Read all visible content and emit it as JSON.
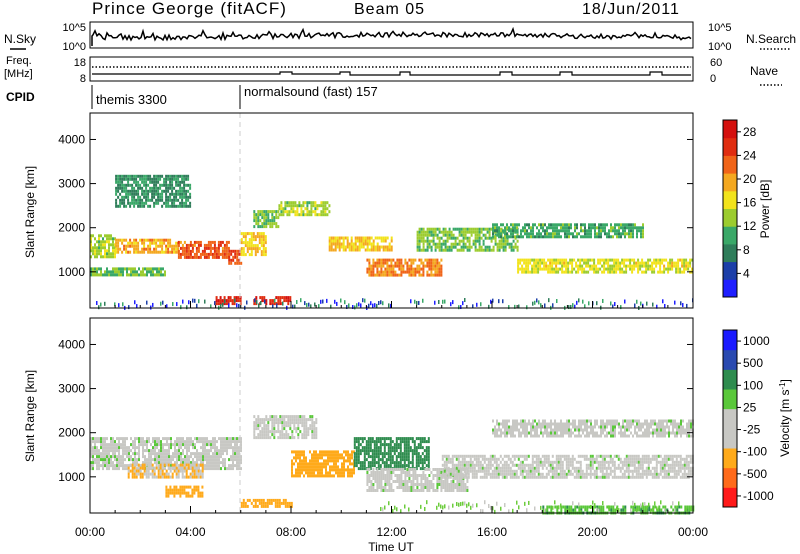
{
  "header": {
    "station": "Prince George (fitACF)",
    "beam": "Beam 05",
    "date": "18/Jun/2011"
  },
  "small_panels": {
    "nsky": {
      "label": "N.Sky",
      "ticks": [
        "10^5",
        "10^0"
      ]
    },
    "nsearch": {
      "label": "N.Search",
      "ticks": [
        "10^5",
        "10^0"
      ]
    },
    "freq": {
      "label_line1": "Freq.",
      "label_line2": "[MHz]",
      "ticks": [
        "18",
        "8"
      ]
    },
    "nave": {
      "label": "Nave",
      "ticks": [
        "60",
        "0"
      ]
    },
    "cpid": {
      "label": "CPID",
      "segments": [
        {
          "name": "themis 3300"
        },
        {
          "name": "normalsound (fast) 157"
        }
      ]
    }
  },
  "colors": {
    "power_scale": [
      "#1f1fff",
      "#1c3fa8",
      "#2f7d5a",
      "#3aa868",
      "#9ccc2f",
      "#f2e31c",
      "#f4a820",
      "#f06418",
      "#e02d10",
      "#d4100e"
    ],
    "velocity_scale": [
      "#ff1a1a",
      "#ff6a1a",
      "#ffaa1a",
      "#c8c8c4",
      "#c8c8c4",
      "#5ac83a",
      "#2e8c4e",
      "#2a4ab0",
      "#1a1aff"
    ]
  },
  "chart_data": [
    {
      "type": "heatmap",
      "name": "power",
      "xlabel": "",
      "ylabel": "Slant Range [km]",
      "xlim_hours": [
        0,
        24
      ],
      "ylim": [
        180,
        4600
      ],
      "yticks": [
        1000,
        2000,
        3000,
        4000
      ],
      "colorbar": {
        "label": "Power [dB]",
        "ticks": [
          4,
          8,
          12,
          16,
          20,
          24,
          28
        ],
        "range": [
          0,
          30
        ]
      },
      "bands": [
        {
          "h": [
            0.0,
            1.0
          ],
          "y": [
            1350,
            1850
          ],
          "v": 14
        },
        {
          "h": [
            1.0,
            3.5
          ],
          "y": [
            1450,
            1750
          ],
          "v": 20
        },
        {
          "h": [
            3.5,
            5.5
          ],
          "y": [
            1300,
            1700
          ],
          "v": 24
        },
        {
          "h": [
            5.5,
            6.0
          ],
          "y": [
            1200,
            1500
          ],
          "v": 26
        },
        {
          "h": [
            6.0,
            7.0
          ],
          "y": [
            1400,
            1900
          ],
          "v": 18
        },
        {
          "h": [
            6.5,
            7.5
          ],
          "y": [
            2000,
            2400
          ],
          "v": 12
        },
        {
          "h": [
            7.5,
            9.5
          ],
          "y": [
            2300,
            2600
          ],
          "v": 14
        },
        {
          "h": [
            9.5,
            12.0
          ],
          "y": [
            1500,
            1800
          ],
          "v": 18
        },
        {
          "h": [
            11.0,
            14.0
          ],
          "y": [
            900,
            1300
          ],
          "v": 22
        },
        {
          "h": [
            13.0,
            17.0
          ],
          "y": [
            1500,
            2000
          ],
          "v": 12
        },
        {
          "h": [
            17.0,
            24.0
          ],
          "y": [
            1000,
            1300
          ],
          "v": 16
        },
        {
          "h": [
            16.0,
            22.0
          ],
          "y": [
            1800,
            2100
          ],
          "v": 10
        },
        {
          "h": [
            0.0,
            3.0
          ],
          "y": [
            900,
            1100
          ],
          "v": 12
        },
        {
          "h": [
            1.0,
            4.0
          ],
          "y": [
            2500,
            3200
          ],
          "v": 8
        },
        {
          "h": [
            5.0,
            6.0
          ],
          "y": [
            300,
            450
          ],
          "v": 28
        },
        {
          "h": [
            6.5,
            8.0
          ],
          "y": [
            300,
            450
          ],
          "v": 28
        }
      ]
    },
    {
      "type": "heatmap",
      "name": "velocity",
      "xlabel": "Time UT",
      "ylabel": "Slant Range [km]",
      "xlim_hours": [
        0,
        24
      ],
      "xticks": [
        "00:00",
        "04:00",
        "08:00",
        "12:00",
        "16:00",
        "20:00",
        "00:00"
      ],
      "ylim": [
        180,
        4600
      ],
      "yticks": [
        1000,
        2000,
        3000,
        4000
      ],
      "colorbar": {
        "label": "Velocity [m s^-1]",
        "ticks": [
          "1000",
          "500",
          "100",
          "25",
          "-25",
          "-100",
          "-500",
          "-1000"
        ]
      },
      "bands": [
        {
          "h": [
            0.0,
            6.0
          ],
          "y": [
            1200,
            1900
          ],
          "v": 0
        },
        {
          "h": [
            1.5,
            4.5
          ],
          "y": [
            1000,
            1300
          ],
          "v": -100
        },
        {
          "h": [
            3.0,
            4.5
          ],
          "y": [
            550,
            800
          ],
          "v": -300
        },
        {
          "h": [
            6.5,
            9.0
          ],
          "y": [
            1900,
            2400
          ],
          "v": 0
        },
        {
          "h": [
            8.0,
            10.5
          ],
          "y": [
            1000,
            1600
          ],
          "v": -400
        },
        {
          "h": [
            10.5,
            13.5
          ],
          "y": [
            1200,
            1900
          ],
          "v": 150
        },
        {
          "h": [
            11.0,
            15.0
          ],
          "y": [
            700,
            1200
          ],
          "v": 0
        },
        {
          "h": [
            14.0,
            24.0
          ],
          "y": [
            1000,
            1500
          ],
          "v": 0
        },
        {
          "h": [
            16.0,
            24.0
          ],
          "y": [
            1900,
            2300
          ],
          "v": 0
        },
        {
          "h": [
            6.0,
            8.0
          ],
          "y": [
            300,
            500
          ],
          "v": -200
        },
        {
          "h": [
            18.0,
            24.0
          ],
          "y": [
            200,
            350
          ],
          "v": 80
        }
      ]
    }
  ],
  "plot_label": {
    "power_colorbar_label": "Power [dB]",
    "velocity_colorbar_label": "Velocity [m s",
    "velocity_colorbar_sup": "-1",
    "velocity_colorbar_end": "]"
  }
}
